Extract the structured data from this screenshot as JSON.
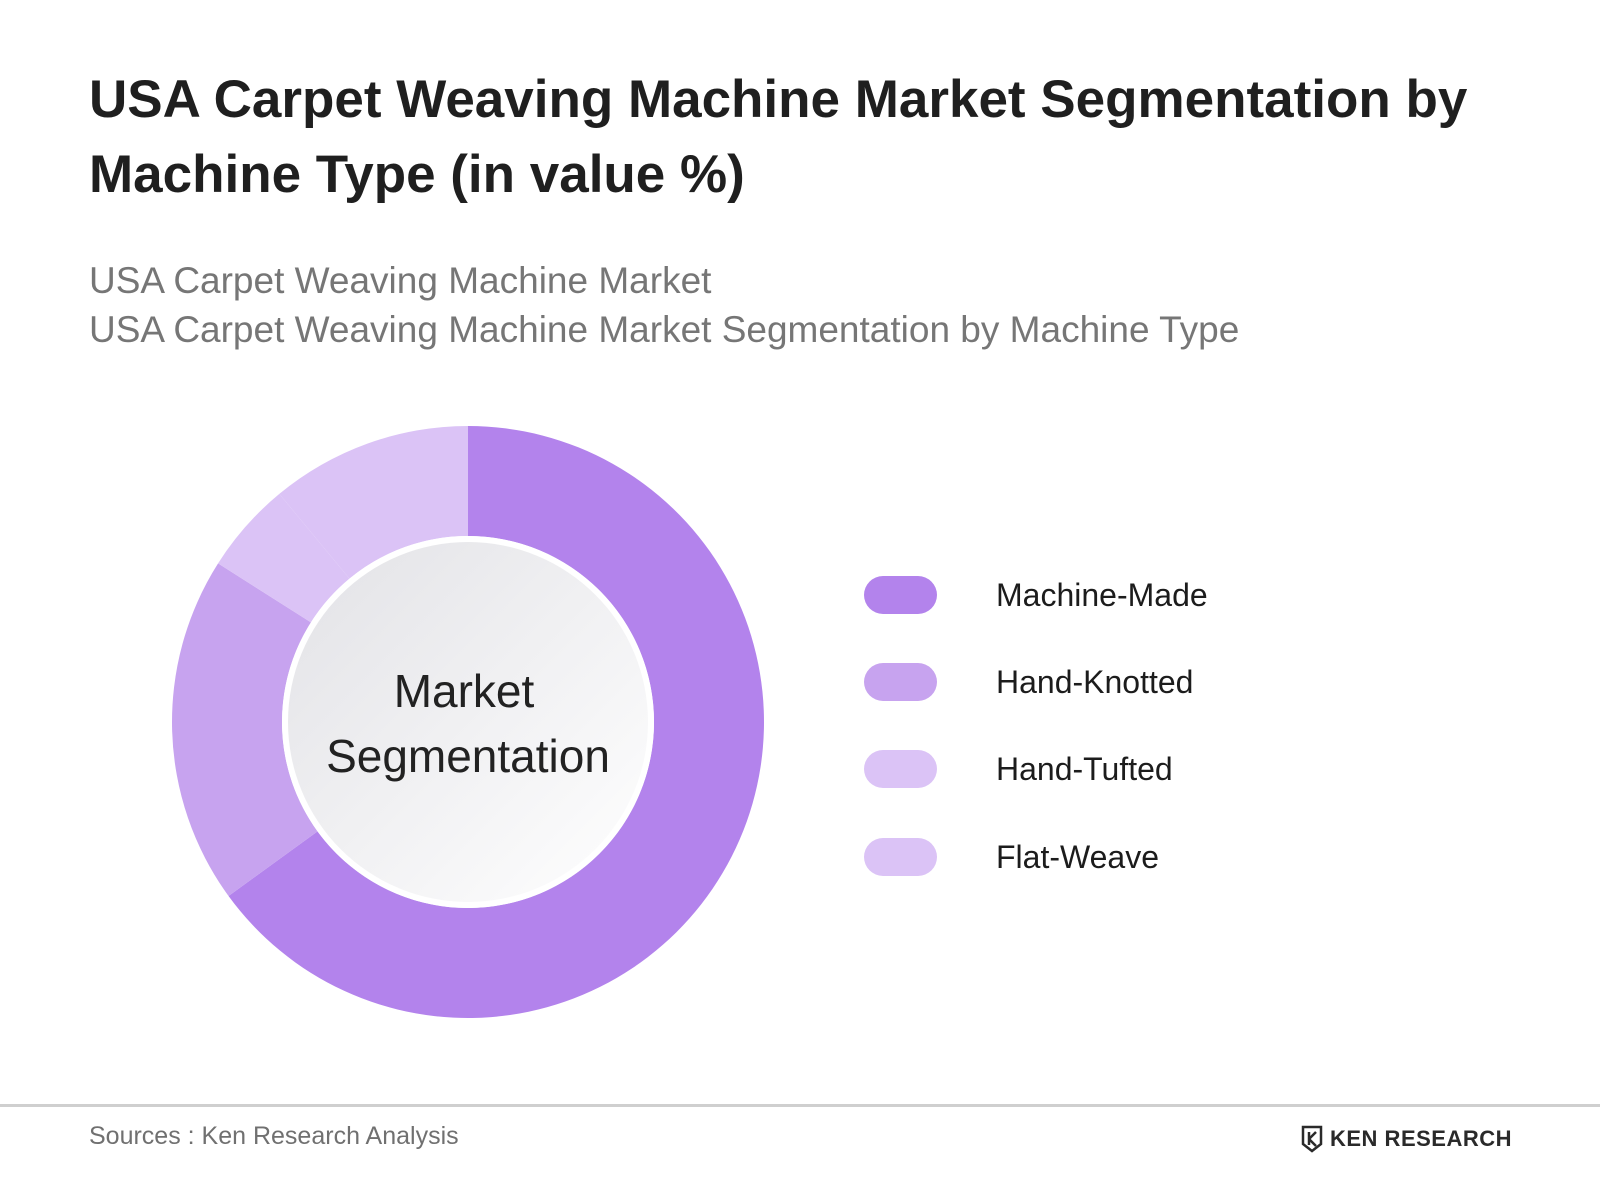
{
  "title": "USA Carpet Weaving Machine Market Segmentation by Machine Type (in value %)",
  "subtitles": [
    "USA Carpet Weaving Machine Market",
    "USA Carpet Weaving Machine Market Segmentation by Machine Type"
  ],
  "center_label": [
    "Market",
    "Segmentation"
  ],
  "chart_data": {
    "type": "pie",
    "categories": [
      "Machine-Made",
      "Hand-Knotted",
      "Hand-Tufted",
      "Flat-Weave"
    ],
    "values": [
      65,
      19,
      5,
      11
    ],
    "colors": [
      "#b383ec",
      "#c7a3ef",
      "#dbc3f6",
      "#dbc3f6"
    ],
    "legend_position": "right"
  },
  "footer": {
    "source": "Sources : Ken Research Analysis",
    "brand": "KEN RESEARCH"
  }
}
